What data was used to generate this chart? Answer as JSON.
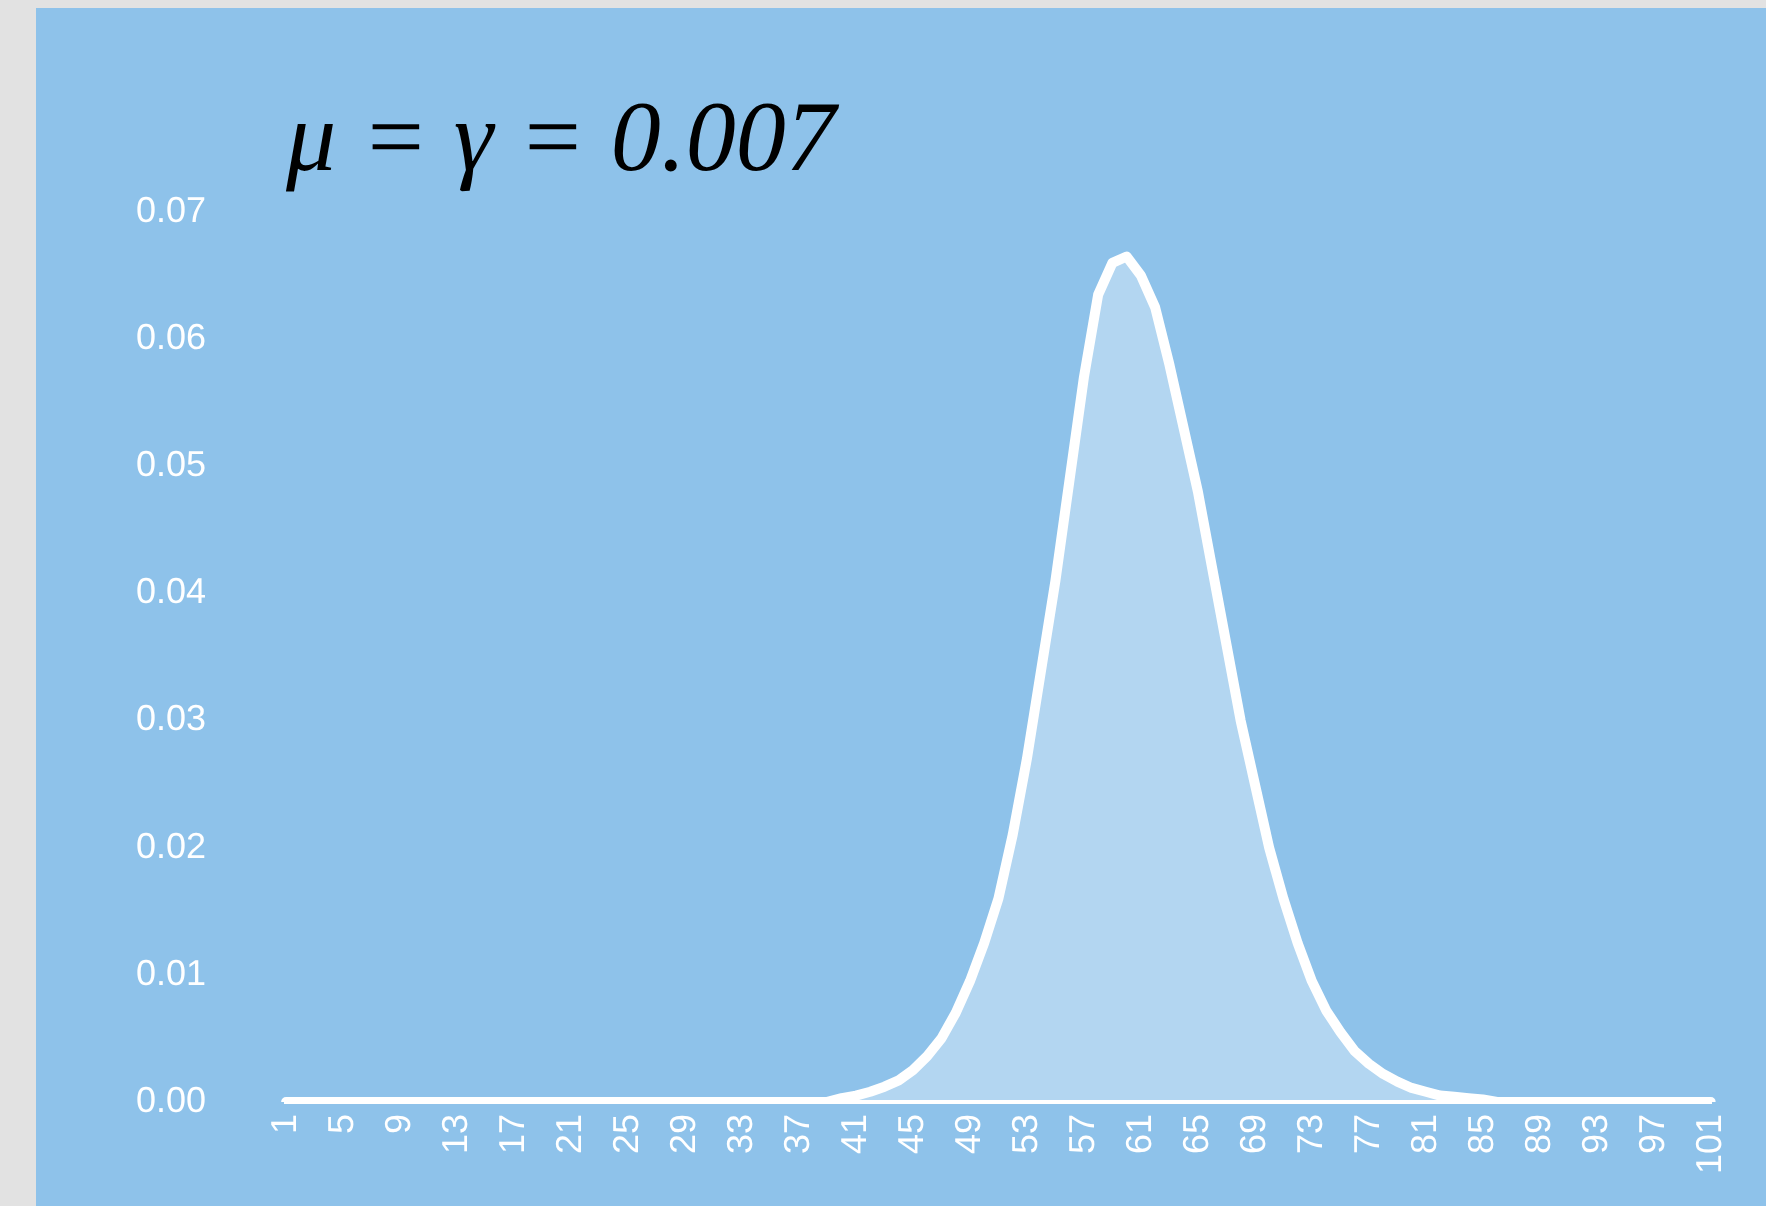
{
  "chart_data": {
    "type": "area",
    "title": "μ = γ = 0.007",
    "categories": [
      "1",
      null,
      null,
      null,
      "5",
      null,
      null,
      null,
      "9",
      null,
      null,
      null,
      "13",
      null,
      null,
      null,
      "17",
      null,
      null,
      null,
      "21",
      null,
      null,
      null,
      "25",
      null,
      null,
      null,
      "29",
      null,
      null,
      null,
      "33",
      null,
      null,
      null,
      "37",
      null,
      null,
      null,
      "41",
      null,
      null,
      null,
      "45",
      null,
      null,
      null,
      "49",
      null,
      null,
      null,
      "53",
      null,
      null,
      null,
      "57",
      null,
      null,
      null,
      "61",
      null,
      null,
      null,
      "65",
      null,
      null,
      null,
      "69",
      null,
      null,
      null,
      "73",
      null,
      null,
      null,
      "77",
      null,
      null,
      null,
      "81",
      null,
      null,
      null,
      "85",
      null,
      null,
      null,
      "89",
      null,
      null,
      null,
      "93",
      null,
      null,
      null,
      "97",
      null,
      null,
      null,
      "101"
    ],
    "series": [
      {
        "color": "#ffffff",
        "values": [
          0,
          0,
          0,
          0,
          0,
          0,
          0,
          0,
          0,
          0,
          0,
          0,
          0,
          0,
          0,
          0,
          0,
          0,
          0,
          0,
          0,
          0,
          0,
          0,
          0,
          0,
          0,
          0,
          0,
          0,
          0,
          0,
          0,
          0,
          0,
          0,
          0,
          0,
          0,
          0.0003,
          0.0005,
          0.0008,
          0.0012,
          0.0017,
          0.0025,
          0.0036,
          0.005,
          0.007,
          0.0095,
          0.0125,
          0.016,
          0.021,
          0.027,
          0.034,
          0.041,
          0.049,
          0.057,
          0.0635,
          0.066,
          0.0665,
          0.065,
          0.0625,
          0.058,
          0.053,
          0.048,
          0.042,
          0.036,
          0.03,
          0.025,
          0.02,
          0.016,
          0.0125,
          0.0095,
          0.0072,
          0.0055,
          0.004,
          0.003,
          0.0022,
          0.0016,
          0.0011,
          0.0008,
          0.0005,
          0.0004,
          0.0003,
          0.0002,
          0,
          0,
          0,
          0,
          0,
          0,
          0,
          0,
          0,
          0,
          0,
          0,
          0,
          0,
          0,
          0
        ]
      }
    ],
    "ylim": [
      0,
      0.07
    ],
    "yticks": [
      {
        "value": 0,
        "label": "0.00"
      },
      {
        "value": 0.01,
        "label": "0.01"
      },
      {
        "value": 0.02,
        "label": "0.02"
      },
      {
        "value": 0.03,
        "label": "0.03"
      },
      {
        "value": 0.04,
        "label": "0.04"
      },
      {
        "value": 0.05,
        "label": "0.05"
      },
      {
        "value": 0.06,
        "label": "0.06"
      },
      {
        "value": 0.07,
        "label": "0.07"
      }
    ],
    "grid": false,
    "legend": false,
    "marker": "none",
    "line_style": "solid"
  }
}
